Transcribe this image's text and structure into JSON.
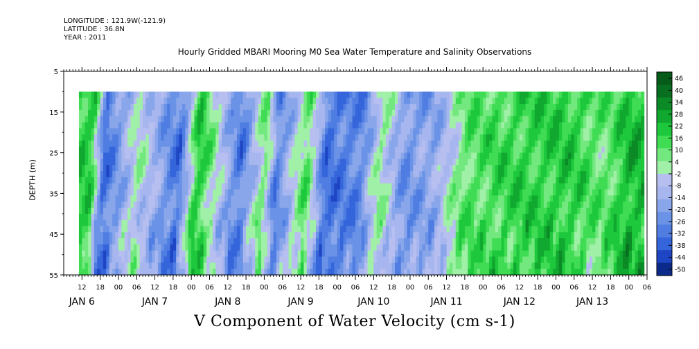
{
  "header": {
    "longitude": "LONGITUDE : 121.9W(-121.9)",
    "latitude": "LATITUDE : 36.8N",
    "year": "YEAR : 2011"
  },
  "chart_data": {
    "type": "heatmap",
    "title": "Hourly Gridded MBARI Mooring M0 Sea Water Temperature and Salinity Observations",
    "xlabel": "V Component of Water Velocity (cm s-1)",
    "ylabel": "DEPTH (m)",
    "ylim": [
      5,
      55
    ],
    "y_inverted": true,
    "y_ticks": [
      5,
      15,
      25,
      35,
      45,
      55
    ],
    "data_depth_range": [
      10,
      55
    ],
    "x_hour_ticks": [
      "12",
      "18",
      "00",
      "06",
      "12",
      "18",
      "00",
      "06",
      "12",
      "18",
      "00",
      "06",
      "12",
      "18",
      "00",
      "06",
      "12",
      "18",
      "00",
      "06",
      "12",
      "18",
      "00",
      "06",
      "12",
      "18",
      "00",
      "06",
      "12",
      "18",
      "00",
      "06"
    ],
    "x_day_labels": [
      "JAN  6",
      "JAN  7",
      "JAN  8",
      "JAN  9",
      "JAN 10",
      "JAN 11",
      "JAN 12",
      "JAN 13"
    ],
    "x_range_hours": [
      0,
      192
    ],
    "data_time_range_hours": [
      5,
      191
    ],
    "colorbar": {
      "levels": [
        "46",
        "40",
        "34",
        "28",
        "22",
        "16",
        "10",
        "4",
        "-2",
        "-8",
        "-14",
        "-20",
        "-26",
        "-32",
        "-38",
        "-44",
        "-50"
      ],
      "range": [
        -50,
        50
      ],
      "colors": [
        "#0b2a8a",
        "#1e45c4",
        "#3565da",
        "#4f7de2",
        "#6a92e6",
        "#8aa6ea",
        "#a7b6ee",
        "#b7bff0",
        "#a0f0a8",
        "#72e87e",
        "#3fdc54",
        "#1ec83c",
        "#10a82e",
        "#0b8a26",
        "#086e20",
        "#065a1a"
      ]
    },
    "features": [
      {
        "t": 9,
        "v": 20
      },
      {
        "t": 13,
        "v": -32
      },
      {
        "t": 24,
        "v": 2
      },
      {
        "t": 38,
        "v": -30
      },
      {
        "t": 44,
        "v": 22
      },
      {
        "t": 58,
        "v": -28
      },
      {
        "t": 66,
        "v": 10
      },
      {
        "t": 70,
        "v": -26
      },
      {
        "t": 80,
        "v": 14
      },
      {
        "t": 86,
        "v": -30
      },
      {
        "t": 98,
        "v": -24
      },
      {
        "t": 104,
        "v": 6
      },
      {
        "t": 112,
        "v": -20
      },
      {
        "t": 122,
        "v": -14
      },
      {
        "t": 132,
        "v": 12
      },
      {
        "t": 150,
        "v": 18
      },
      {
        "t": 166,
        "v": 20
      },
      {
        "t": 178,
        "v": 10
      },
      {
        "t": 186,
        "v": 24
      }
    ]
  }
}
